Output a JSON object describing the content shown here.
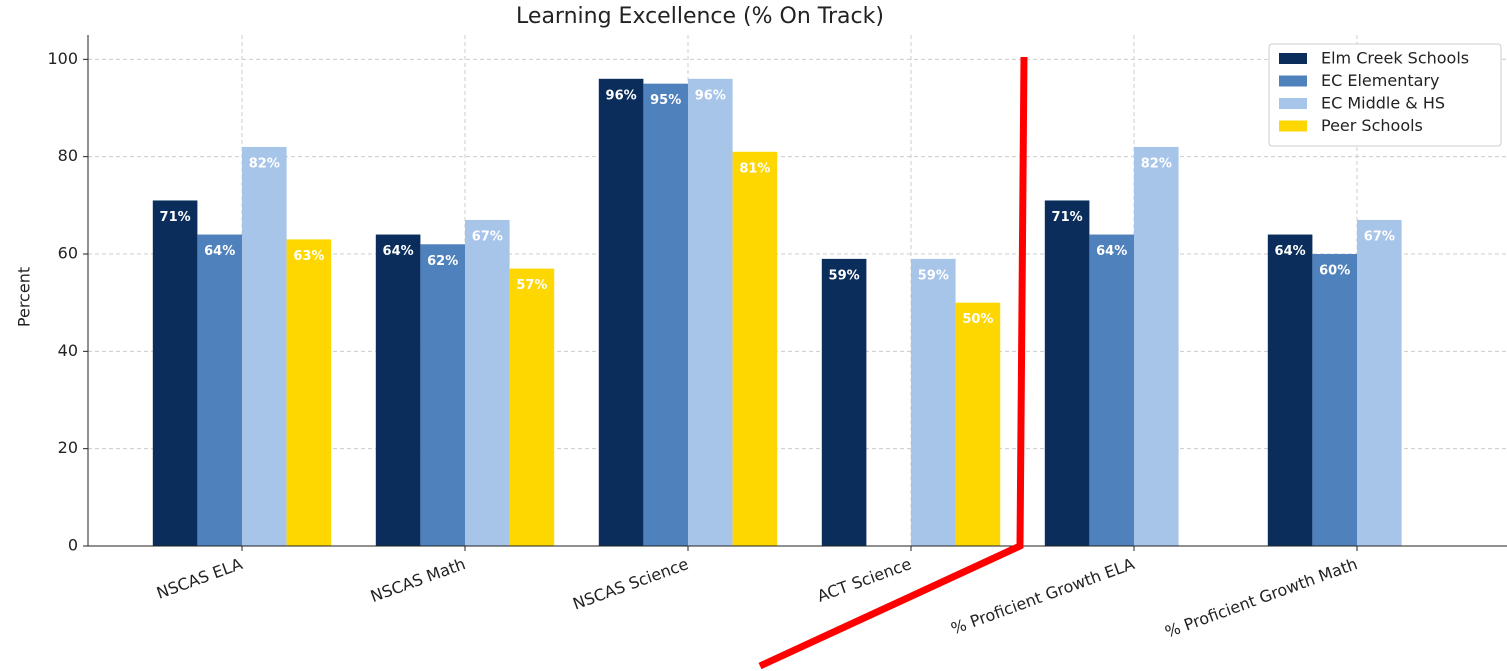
{
  "chart_data": {
    "type": "bar",
    "title": "Learning Excellence (% On Track)",
    "y_label": "Percent",
    "categories": [
      "NSCAS ELA",
      "NSCAS Math",
      "NSCAS Science",
      "ACT Science",
      "% Proficient Growth ELA",
      "% Proficient Growth Math"
    ],
    "series": [
      {
        "name": "Elm Creek Schools",
        "color": "#0b2d5b",
        "values": [
          71,
          64,
          96,
          59,
          71,
          64
        ],
        "value_labels": [
          "71%",
          "64%",
          "96%",
          "59%",
          "71%",
          "64%"
        ]
      },
      {
        "name": "EC Elementary",
        "color": "#4f81bd",
        "values": [
          64,
          62,
          95,
          null,
          64,
          60
        ],
        "value_labels": [
          "64%",
          "62%",
          "95%",
          null,
          "64%",
          "60%"
        ]
      },
      {
        "name": "EC Middle & HS",
        "color": "#a7c4e9",
        "values": [
          82,
          67,
          96,
          59,
          82,
          67
        ],
        "value_labels": [
          "82%",
          "67%",
          "96%",
          "59%",
          "82%",
          "67%"
        ]
      },
      {
        "name": "Peer Schools",
        "color": "#ffd700",
        "values": [
          63,
          57,
          81,
          50,
          null,
          null
        ],
        "value_labels": [
          "63%",
          "57%",
          "81%",
          "50%",
          null,
          null
        ]
      }
    ],
    "ylim": [
      0,
      105
    ],
    "yticks": [
      0,
      20,
      40,
      60,
      80,
      100
    ],
    "grid": true,
    "legend": "upper right"
  }
}
